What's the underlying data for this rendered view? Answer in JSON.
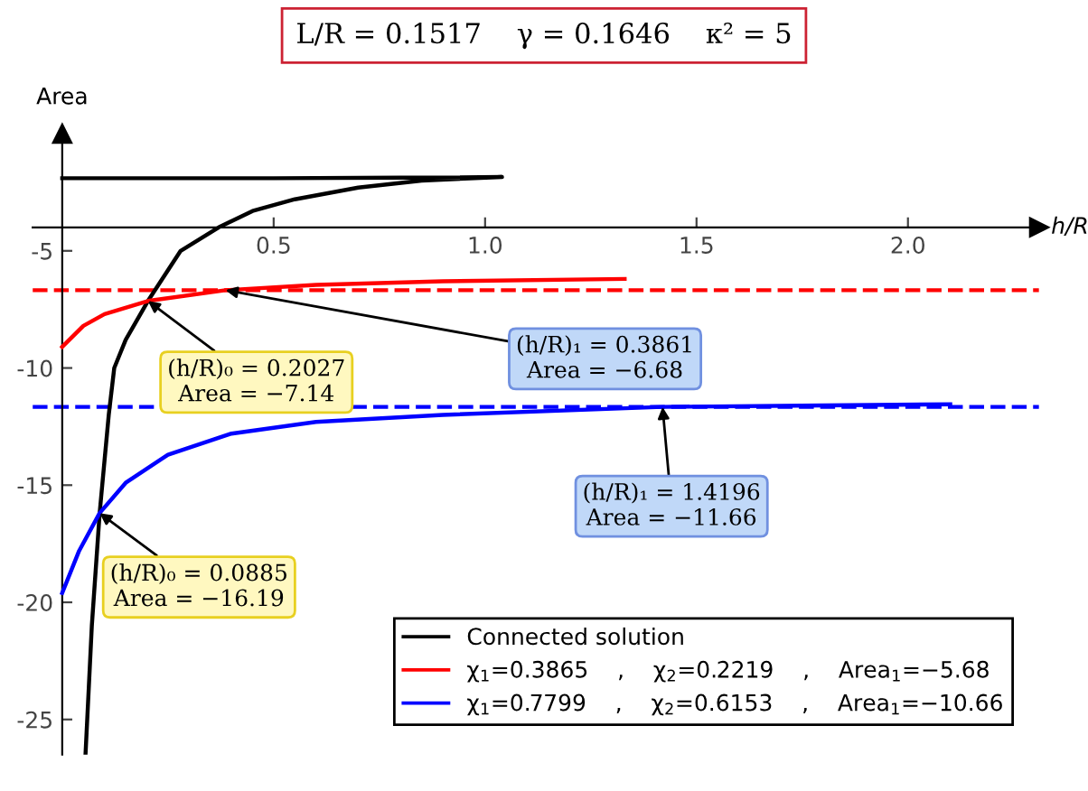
{
  "chart_data": {
    "type": "line",
    "title": "L/R = 0.1517    γ = 0.1646    κ² = 5",
    "xlabel": "h/R",
    "ylabel": "Area",
    "xlim": [
      -0.07,
      2.31
    ],
    "ylim": [
      -26.5,
      0
    ],
    "xticks": [
      0.5,
      {
        "value": 1.0,
        "label": "1.0"
      },
      1.5,
      {
        "value": 2.0,
        "label": "2.0"
      }
    ],
    "yticks": [
      -25,
      -20,
      -15,
      -10,
      -5
    ],
    "grid": false,
    "legend": "bottom right",
    "line_style": "solid",
    "marker": "none",
    "series": [
      {
        "name": "Connected solution",
        "color": "#000000",
        "x": [
          0.055,
          0.07,
          0.0885,
          0.11,
          0.123,
          0.15,
          0.2027,
          0.28,
          0.37,
          0.45,
          0.55,
          0.7,
          0.85,
          1.04,
          0.8,
          0.5,
          0.2,
          0.0
        ],
        "values": [
          -26.5,
          -21,
          -16.19,
          -12,
          -10,
          -8.8,
          -7.14,
          -5,
          -4,
          -3.3,
          -2.8,
          -2.3,
          -2.0,
          -1.85,
          -1.88,
          -1.9,
          -1.9,
          -1.9
        ]
      },
      {
        "name": "χ$_{1}$=0.3865    ,    χ$_{2}$=0.2219    ,    Area$_{1}$=−5.68",
        "color": "#ff0000",
        "x": [
          0,
          0.05,
          0.1,
          0.2027,
          0.3861,
          0.6,
          0.9,
          1.33
        ],
        "values": [
          -9.1,
          -8.2,
          -7.7,
          -7.14,
          -6.68,
          -6.45,
          -6.3,
          -6.2
        ]
      },
      {
        "name": "χ$_{1}$=0.7799    ,    χ$_{2}$=0.6153    ,    Area$_{1}$=−10.66",
        "color": "#0000ff",
        "x": [
          0,
          0.04,
          0.0885,
          0.15,
          0.25,
          0.4,
          0.6,
          0.9,
          1.4196,
          1.8,
          2.1
        ],
        "values": [
          -19.6,
          -17.8,
          -16.19,
          -14.9,
          -13.7,
          -12.8,
          -12.3,
          -12.0,
          -11.66,
          -11.6,
          -11.55
        ]
      }
    ],
    "ref_lines": [
      {
        "axis": "y",
        "value": -6.68,
        "color": "#ff0000",
        "line_style": "dashed"
      },
      {
        "axis": "y",
        "value": -11.66,
        "color": "#0000ff",
        "line_style": "dashed"
      }
    ],
    "annotations": [
      {
        "text": "(h/R)₀ = 0.2027\nArea = −7.14",
        "x": 0.2027,
        "y": -7.14
      },
      {
        "text": "(h/R)₁ = 0.3861\nArea = −6.68",
        "x": 0.3861,
        "y": -6.68
      },
      {
        "text": "(h/R)₁ = 1.4196\nArea = −11.66",
        "x": 1.4196,
        "y": -11.66
      },
      {
        "text": "(h/R)₀ = 0.0885\nArea = −16.19",
        "x": 0.0885,
        "y": -16.19
      }
    ]
  }
}
